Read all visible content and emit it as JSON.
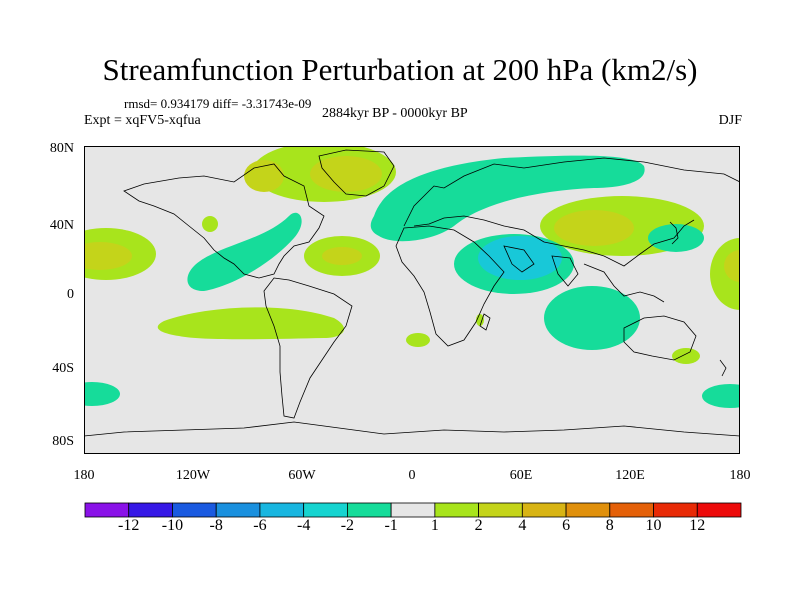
{
  "title": "Streamfunction Perturbation at 200 hPa (km2/s)",
  "stats": "rmsd= 0.934179 diff= -3.31743e-09",
  "experiment": "Expt = xqFV5-xqfua",
  "period": "2884kyr BP - 0000kyr BP",
  "season": "DJF",
  "lat_labels": [
    "80N",
    "40N",
    "0",
    "40S",
    "80S"
  ],
  "lon_labels": [
    "180",
    "120W",
    "60W",
    "0",
    "60E",
    "120E",
    "180"
  ],
  "colorbar": {
    "labels": [
      "-12",
      "-10",
      "-8",
      "-6",
      "-4",
      "-2",
      "-1",
      "1",
      "2",
      "4",
      "6",
      "8",
      "10",
      "12"
    ],
    "colors": [
      "#8a12e8",
      "#3618e6",
      "#1a5ae0",
      "#1a90de",
      "#18b6e0",
      "#16d4d0",
      "#16dc9a",
      "#e6e6e6",
      "#a8e41c",
      "#c4d41a",
      "#d8b414",
      "#e0900c",
      "#e46008",
      "#e82a06",
      "#ec0a0a"
    ]
  },
  "background_color": "#e6e6e6",
  "coastline_color": "#000000"
}
